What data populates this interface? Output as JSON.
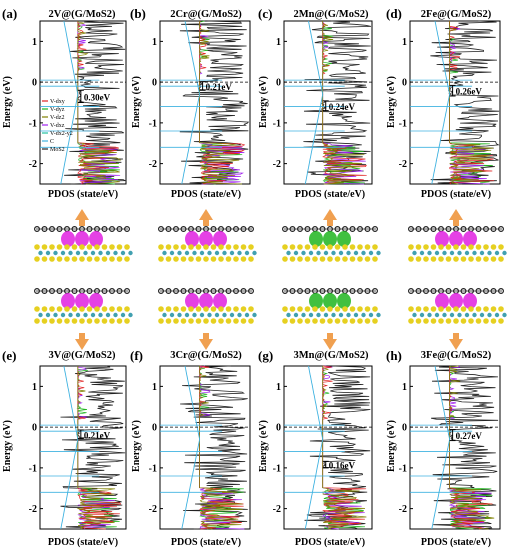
{
  "y_axis_label": "Energy (eV)",
  "x_axis_label": "PDOS (state/eV)",
  "y_ticks": [
    "1",
    "0",
    "-1",
    "-2"
  ],
  "legend_entries": [
    "V-dxy",
    "V-dyz",
    "V-dz2",
    "V-dxz",
    "V-dx2-y2",
    "C",
    "MoS2"
  ],
  "colors": {
    "total": "#222222",
    "C": "#3fb2e0",
    "d_green": "#1fb51f",
    "d_purple": "#a020f0",
    "d_red": "#e02020",
    "d_olive": "#808000",
    "fermi": "#000000",
    "arrow": "#f0a050",
    "density": "#e020e0",
    "atom_yellow": "#e6d020",
    "atom_teal": "#40a0b0",
    "atom_black": "#222222"
  },
  "chart_data": [
    {
      "type": "line",
      "panel": "(a)",
      "title": "2V@(G/MoS2)",
      "xlabel": "PDOS (state/eV)",
      "ylabel": "Energy (eV)",
      "ylim": [
        -2.5,
        1.5
      ],
      "band_gap": {
        "label": "0.30eV",
        "value": 0.3,
        "vbm": -0.5,
        "cbm": -0.2
      },
      "has_legend": true
    },
    {
      "type": "line",
      "panel": "(b)",
      "title": "2Cr@(G/MoS2)",
      "xlabel": "PDOS (state/eV)",
      "ylabel": "Energy (eV)",
      "ylim": [
        -2.5,
        1.5
      ],
      "band_gap": {
        "label": "0.21eV",
        "value": 0.21,
        "vbm": -0.2,
        "cbm": 0.01
      },
      "has_legend": false
    },
    {
      "type": "line",
      "panel": "(c)",
      "title": "2Mn@(G/MoS2)",
      "xlabel": "PDOS (state/eV)",
      "ylabel": "Energy (eV)",
      "ylim": [
        -2.5,
        1.5
      ],
      "band_gap": {
        "label": "0.24eV",
        "value": 0.24,
        "vbm": -0.7,
        "cbm": -0.46
      },
      "has_legend": false
    },
    {
      "type": "line",
      "panel": "(d)",
      "title": "2Fe@(G/MoS2)",
      "xlabel": "PDOS (state/eV)",
      "ylabel": "Energy (eV)",
      "ylim": [
        -2.5,
        1.5
      ],
      "band_gap": {
        "label": "0.26eV",
        "value": 0.26,
        "vbm": -0.34,
        "cbm": -0.08
      },
      "has_legend": false
    },
    {
      "type": "line",
      "panel": "(e)",
      "title": "3V@(G/MoS2)",
      "xlabel": "PDOS (state/eV)",
      "ylabel": "Energy (eV)",
      "ylim": [
        -2.5,
        1.5
      ],
      "band_gap": {
        "label": "0.21eV",
        "value": 0.21,
        "vbm": -0.28,
        "cbm": -0.07
      },
      "has_legend": false
    },
    {
      "type": "line",
      "panel": "(f)",
      "title": "3Cr@(G/MoS2)",
      "xlabel": "PDOS (state/eV)",
      "ylabel": "Energy (eV)",
      "ylim": [
        -2.5,
        1.5
      ],
      "band_gap": null,
      "has_legend": false
    },
    {
      "type": "line",
      "panel": "(g)",
      "title": "3Mn@(G/MoS2)",
      "xlabel": "PDOS (state/eV)",
      "ylabel": "Energy (eV)",
      "ylim": [
        -2.5,
        1.5
      ],
      "band_gap": {
        "label": "0.16eV",
        "value": 0.16,
        "vbm": -1.0,
        "cbm": -0.84
      },
      "has_legend": false
    },
    {
      "type": "line",
      "panel": "(h)",
      "title": "3Fe@(G/MoS2)",
      "xlabel": "PDOS (state/eV)",
      "ylabel": "Energy (eV)",
      "ylim": [
        -2.5,
        1.5
      ],
      "band_gap": {
        "label": "0.27eV",
        "value": 0.27,
        "vbm": -0.33,
        "cbm": -0.06
      },
      "has_legend": false
    }
  ]
}
